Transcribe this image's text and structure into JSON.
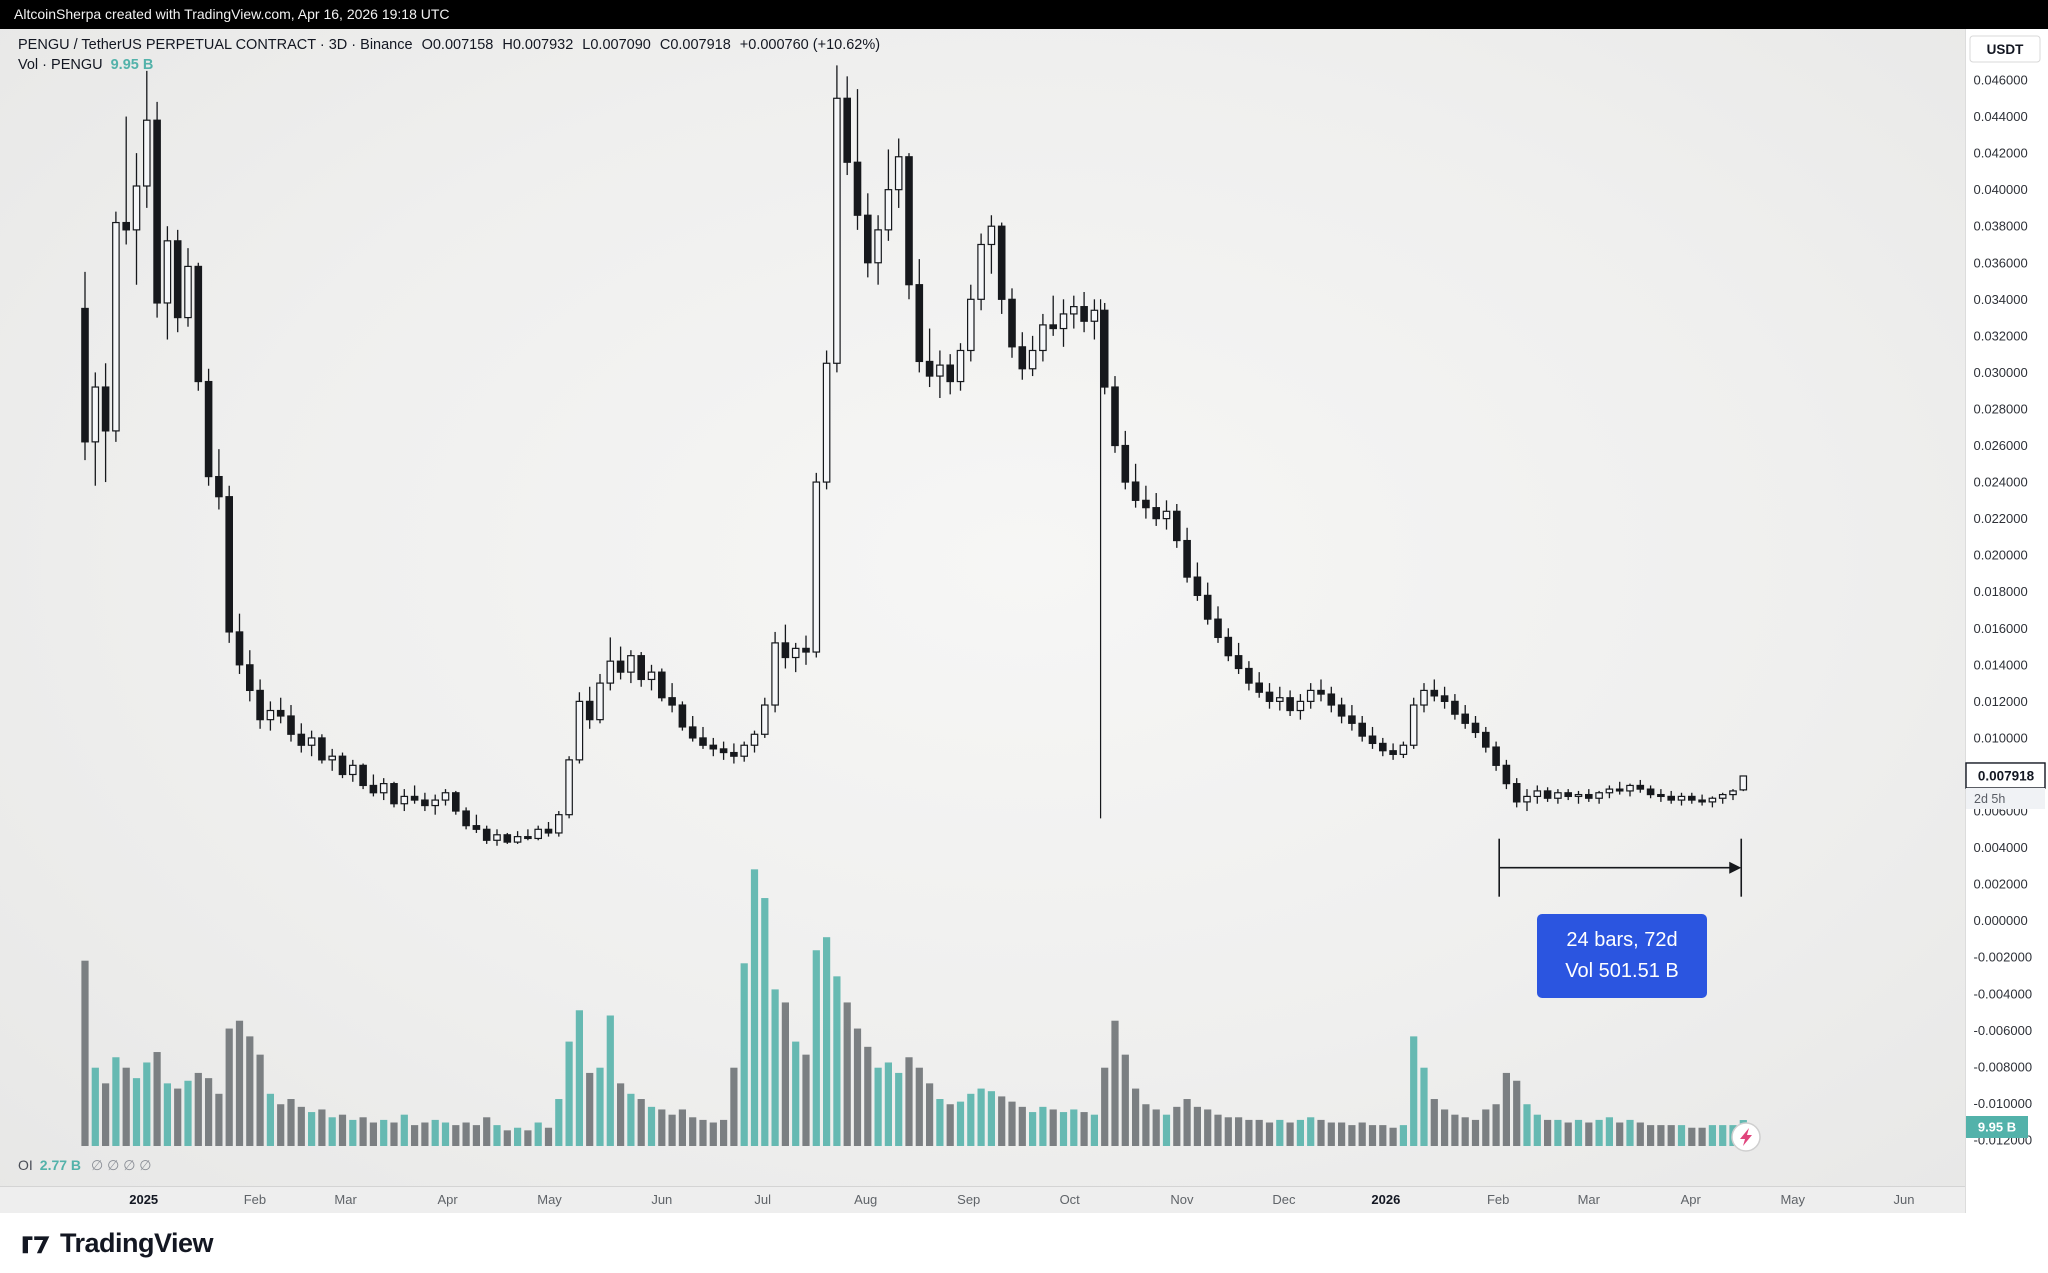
{
  "meta": {
    "attribution": "AltcoinSherpa created with TradingView.com, Apr 16, 2026 19:18 UTC"
  },
  "header": {
    "symbol_line": "PENGU / TetherUS PERPETUAL CONTRACT · 3D · Binance",
    "open": "O0.007158",
    "high": "H0.007932",
    "low": "L0.007090",
    "close": "C0.007918",
    "change": "+0.000760 (+10.62%)",
    "vol_label": "Vol · PENGU",
    "vol_value": "9.95 B"
  },
  "axis": {
    "currency": "USDT",
    "last_price": "0.007918",
    "countdown": "2d 5h",
    "vol_tag": "9.95 B"
  },
  "oi": {
    "label": "OI",
    "value": "2.77 B",
    "flags": "∅ ∅ ∅ ∅"
  },
  "annotation": {
    "line1": "24 bars, 72d",
    "line2": "Vol 501.51 B"
  },
  "footer": {
    "brand": "TradingView"
  },
  "colors": {
    "teal": "#53b2aa",
    "vol_down": "#6b6f73",
    "candle": "#16181c",
    "candle_up_fill": "#f6f7f9",
    "annotation_blue": "#2b55e0",
    "axis_text": "#2e3138",
    "date_text": "#5f6368",
    "bolt_pink": "#e0447c"
  },
  "chart_data": {
    "type": "candlestick",
    "symbol": "PENGU / TetherUS PERPETUAL CONTRACT",
    "exchange": "Binance",
    "timeframe": "3D",
    "ylim": [
      -0.012,
      0.046
    ],
    "price_step": 0.002,
    "price_decimals": 6,
    "volume_unit": "B",
    "x_labels": [
      {
        "t": "2025",
        "i": 5.7,
        "bold": true
      },
      {
        "t": "Feb",
        "i": 16.5
      },
      {
        "t": "Mar",
        "i": 25.3
      },
      {
        "t": "Apr",
        "i": 35.2
      },
      {
        "t": "May",
        "i": 45.1
      },
      {
        "t": "Jun",
        "i": 56.0
      },
      {
        "t": "Jul",
        "i": 65.8
      },
      {
        "t": "Aug",
        "i": 75.8
      },
      {
        "t": "Sep",
        "i": 85.8
      },
      {
        "t": "Oct",
        "i": 95.6
      },
      {
        "t": "Nov",
        "i": 106.5
      },
      {
        "t": "Dec",
        "i": 116.4
      },
      {
        "t": "2026",
        "i": 126.3,
        "bold": true
      },
      {
        "t": "Feb",
        "i": 137.2
      },
      {
        "t": "Mar",
        "i": 146.0
      },
      {
        "t": "Apr",
        "i": 155.9
      },
      {
        "t": "May",
        "i": 165.8
      },
      {
        "t": "Jun",
        "i": 176.6
      }
    ],
    "candles": [
      [
        0.0335,
        0.0355,
        0.0252,
        0.0262,
        71
      ],
      [
        0.0262,
        0.03,
        0.0238,
        0.0292,
        30
      ],
      [
        0.0292,
        0.0305,
        0.024,
        0.0268,
        24
      ],
      [
        0.0268,
        0.0388,
        0.0262,
        0.0382,
        34
      ],
      [
        0.0382,
        0.044,
        0.037,
        0.0378,
        30
      ],
      [
        0.0378,
        0.042,
        0.0348,
        0.0402,
        26
      ],
      [
        0.0402,
        0.0465,
        0.039,
        0.0438,
        32
      ],
      [
        0.0438,
        0.0448,
        0.033,
        0.0338,
        36
      ],
      [
        0.0338,
        0.038,
        0.0318,
        0.0372,
        24
      ],
      [
        0.0372,
        0.0378,
        0.0322,
        0.033,
        22
      ],
      [
        0.033,
        0.0368,
        0.0325,
        0.0358,
        25
      ],
      [
        0.0358,
        0.036,
        0.029,
        0.0295,
        28
      ],
      [
        0.0295,
        0.0302,
        0.0238,
        0.0243,
        26
      ],
      [
        0.0243,
        0.0258,
        0.0225,
        0.0232,
        20
      ],
      [
        0.0232,
        0.0238,
        0.0152,
        0.0158,
        45
      ],
      [
        0.0158,
        0.0168,
        0.0135,
        0.014,
        48
      ],
      [
        0.014,
        0.0148,
        0.012,
        0.0126,
        42
      ],
      [
        0.0126,
        0.0132,
        0.0105,
        0.011,
        35
      ],
      [
        0.011,
        0.012,
        0.0104,
        0.0115,
        20
      ],
      [
        0.0115,
        0.0122,
        0.0108,
        0.0112,
        16
      ],
      [
        0.0112,
        0.0118,
        0.0098,
        0.0102,
        18
      ],
      [
        0.0102,
        0.0108,
        0.0092,
        0.0096,
        15
      ],
      [
        0.0096,
        0.0104,
        0.009,
        0.01,
        13
      ],
      [
        0.01,
        0.0102,
        0.0086,
        0.0088,
        14
      ],
      [
        0.0088,
        0.0094,
        0.0082,
        0.009,
        11
      ],
      [
        0.009,
        0.0092,
        0.0078,
        0.008,
        12
      ],
      [
        0.008,
        0.0088,
        0.0076,
        0.0085,
        10
      ],
      [
        0.0085,
        0.0086,
        0.0072,
        0.0074,
        11
      ],
      [
        0.0074,
        0.008,
        0.0068,
        0.007,
        9
      ],
      [
        0.007,
        0.0078,
        0.0066,
        0.0075,
        10
      ],
      [
        0.0075,
        0.0076,
        0.0062,
        0.0064,
        9
      ],
      [
        0.0064,
        0.0072,
        0.006,
        0.0068,
        12
      ],
      [
        0.0068,
        0.0074,
        0.0064,
        0.0066,
        8
      ],
      [
        0.0066,
        0.007,
        0.006,
        0.0063,
        9
      ],
      [
        0.0063,
        0.0069,
        0.0058,
        0.0066,
        10
      ],
      [
        0.0066,
        0.0072,
        0.0063,
        0.007,
        9
      ],
      [
        0.007,
        0.0071,
        0.0058,
        0.006,
        8
      ],
      [
        0.006,
        0.0062,
        0.005,
        0.0052,
        9
      ],
      [
        0.0052,
        0.0058,
        0.0048,
        0.005,
        8
      ],
      [
        0.005,
        0.0052,
        0.0042,
        0.0044,
        11
      ],
      [
        0.0044,
        0.005,
        0.0041,
        0.0047,
        8
      ],
      [
        0.0047,
        0.0048,
        0.0042,
        0.0043,
        6
      ],
      [
        0.0043,
        0.0049,
        0.0042,
        0.0046,
        7
      ],
      [
        0.0046,
        0.005,
        0.0044,
        0.0045,
        6
      ],
      [
        0.0045,
        0.0052,
        0.0044,
        0.005,
        9
      ],
      [
        0.005,
        0.0054,
        0.0046,
        0.0048,
        7
      ],
      [
        0.0048,
        0.006,
        0.0046,
        0.0058,
        18
      ],
      [
        0.0058,
        0.009,
        0.0056,
        0.0088,
        40
      ],
      [
        0.0088,
        0.0125,
        0.0086,
        0.012,
        52
      ],
      [
        0.012,
        0.0128,
        0.0105,
        0.011,
        28
      ],
      [
        0.011,
        0.0135,
        0.0108,
        0.013,
        30
      ],
      [
        0.013,
        0.0155,
        0.0126,
        0.0142,
        50
      ],
      [
        0.0142,
        0.015,
        0.0132,
        0.0136,
        24
      ],
      [
        0.0136,
        0.0148,
        0.013,
        0.0145,
        20
      ],
      [
        0.0145,
        0.0147,
        0.0128,
        0.0132,
        18
      ],
      [
        0.0132,
        0.014,
        0.0126,
        0.0136,
        15
      ],
      [
        0.0136,
        0.0138,
        0.012,
        0.0122,
        14
      ],
      [
        0.0122,
        0.013,
        0.0114,
        0.0118,
        12
      ],
      [
        0.0118,
        0.012,
        0.0104,
        0.0106,
        14
      ],
      [
        0.0106,
        0.0112,
        0.0098,
        0.01,
        11
      ],
      [
        0.01,
        0.0106,
        0.0094,
        0.0096,
        10
      ],
      [
        0.0096,
        0.01,
        0.009,
        0.0094,
        9
      ],
      [
        0.0094,
        0.0098,
        0.0088,
        0.0092,
        10
      ],
      [
        0.0092,
        0.0097,
        0.0086,
        0.009,
        30
      ],
      [
        0.009,
        0.0098,
        0.0087,
        0.0096,
        70
      ],
      [
        0.0096,
        0.0104,
        0.0092,
        0.0102,
        106
      ],
      [
        0.0102,
        0.0122,
        0.01,
        0.0118,
        95
      ],
      [
        0.0118,
        0.0158,
        0.0114,
        0.0152,
        60
      ],
      [
        0.0152,
        0.0162,
        0.0138,
        0.0144,
        55
      ],
      [
        0.0144,
        0.0152,
        0.0136,
        0.0149,
        40
      ],
      [
        0.0149,
        0.0156,
        0.014,
        0.0147,
        35
      ],
      [
        0.0147,
        0.0245,
        0.0144,
        0.024,
        75
      ],
      [
        0.024,
        0.0312,
        0.0236,
        0.0305,
        80
      ],
      [
        0.0305,
        0.0468,
        0.03,
        0.045,
        65
      ],
      [
        0.045,
        0.0462,
        0.0408,
        0.0415,
        55
      ],
      [
        0.0415,
        0.0455,
        0.0378,
        0.0386,
        45
      ],
      [
        0.0386,
        0.0398,
        0.0352,
        0.036,
        38
      ],
      [
        0.036,
        0.0386,
        0.0348,
        0.0378,
        30
      ],
      [
        0.0378,
        0.0422,
        0.0372,
        0.04,
        32
      ],
      [
        0.04,
        0.0428,
        0.039,
        0.0418,
        28
      ],
      [
        0.0418,
        0.042,
        0.034,
        0.0348,
        34
      ],
      [
        0.0348,
        0.0362,
        0.03,
        0.0306,
        30
      ],
      [
        0.0306,
        0.0324,
        0.0292,
        0.0298,
        24
      ],
      [
        0.0298,
        0.0312,
        0.0286,
        0.0304,
        18
      ],
      [
        0.0304,
        0.031,
        0.0288,
        0.0295,
        16
      ],
      [
        0.0295,
        0.0316,
        0.029,
        0.0312,
        17
      ],
      [
        0.0312,
        0.0348,
        0.0306,
        0.034,
        20
      ],
      [
        0.034,
        0.0376,
        0.0334,
        0.037,
        22
      ],
      [
        0.037,
        0.0386,
        0.0354,
        0.038,
        21
      ],
      [
        0.038,
        0.0382,
        0.0332,
        0.034,
        19
      ],
      [
        0.034,
        0.0346,
        0.0308,
        0.0314,
        17
      ],
      [
        0.0314,
        0.0322,
        0.0296,
        0.0302,
        15
      ],
      [
        0.0302,
        0.032,
        0.0298,
        0.0312,
        13
      ],
      [
        0.0312,
        0.0332,
        0.0306,
        0.0326,
        15
      ],
      [
        0.0326,
        0.0342,
        0.032,
        0.0324,
        14
      ],
      [
        0.0324,
        0.034,
        0.0314,
        0.0332,
        13
      ],
      [
        0.0332,
        0.0342,
        0.0324,
        0.0336,
        14
      ],
      [
        0.0336,
        0.0344,
        0.0322,
        0.0328,
        13
      ],
      [
        0.0328,
        0.034,
        0.0318,
        0.0334,
        12
      ],
      [
        0.0334,
        0.0338,
        0.0288,
        0.0292,
        30
      ],
      [
        0.0292,
        0.0298,
        0.0256,
        0.026,
        48
      ],
      [
        0.026,
        0.0268,
        0.0236,
        0.024,
        35
      ],
      [
        0.024,
        0.025,
        0.0226,
        0.023,
        22
      ],
      [
        0.023,
        0.0238,
        0.022,
        0.0226,
        16
      ],
      [
        0.0226,
        0.0234,
        0.0216,
        0.022,
        14
      ],
      [
        0.022,
        0.023,
        0.0214,
        0.0224,
        12
      ],
      [
        0.0224,
        0.0228,
        0.0204,
        0.0208,
        15
      ],
      [
        0.0208,
        0.0215,
        0.0185,
        0.0188,
        18
      ],
      [
        0.0188,
        0.0196,
        0.0175,
        0.0178,
        15
      ],
      [
        0.0178,
        0.0185,
        0.0162,
        0.0165,
        14
      ],
      [
        0.0165,
        0.0172,
        0.0152,
        0.0155,
        12
      ],
      [
        0.0155,
        0.016,
        0.0142,
        0.0145,
        11
      ],
      [
        0.0145,
        0.0152,
        0.0135,
        0.0138,
        11
      ],
      [
        0.0138,
        0.0142,
        0.0126,
        0.013,
        10
      ],
      [
        0.013,
        0.0136,
        0.0122,
        0.0125,
        10
      ],
      [
        0.0125,
        0.013,
        0.0116,
        0.012,
        9
      ],
      [
        0.012,
        0.0128,
        0.0115,
        0.0122,
        10
      ],
      [
        0.0122,
        0.0126,
        0.0112,
        0.0115,
        9
      ],
      [
        0.0115,
        0.0124,
        0.011,
        0.012,
        10
      ],
      [
        0.012,
        0.013,
        0.0116,
        0.0126,
        11
      ],
      [
        0.0126,
        0.0132,
        0.012,
        0.0124,
        10
      ],
      [
        0.0124,
        0.0128,
        0.0114,
        0.0118,
        9
      ],
      [
        0.0118,
        0.0122,
        0.0108,
        0.0112,
        9
      ],
      [
        0.0112,
        0.0118,
        0.0104,
        0.0108,
        8
      ],
      [
        0.0108,
        0.0112,
        0.0098,
        0.0101,
        9
      ],
      [
        0.0101,
        0.0106,
        0.0094,
        0.0097,
        8
      ],
      [
        0.0097,
        0.01,
        0.009,
        0.0093,
        8
      ],
      [
        0.0093,
        0.0097,
        0.0088,
        0.0091,
        7
      ],
      [
        0.0091,
        0.0098,
        0.0089,
        0.0096,
        8
      ],
      [
        0.0096,
        0.0122,
        0.0094,
        0.0118,
        42
      ],
      [
        0.0118,
        0.013,
        0.0114,
        0.0126,
        30
      ],
      [
        0.0126,
        0.0132,
        0.012,
        0.0123,
        18
      ],
      [
        0.0123,
        0.0128,
        0.0116,
        0.012,
        14
      ],
      [
        0.012,
        0.0124,
        0.011,
        0.0113,
        12
      ],
      [
        0.0113,
        0.0118,
        0.0105,
        0.0108,
        11
      ],
      [
        0.0108,
        0.0112,
        0.01,
        0.0103,
        10
      ],
      [
        0.0103,
        0.0106,
        0.0092,
        0.0095,
        14
      ],
      [
        0.0095,
        0.0098,
        0.0082,
        0.0085,
        16
      ],
      [
        0.0085,
        0.0088,
        0.0072,
        0.0075,
        28
      ],
      [
        0.0075,
        0.0078,
        0.0062,
        0.0065,
        25
      ],
      [
        0.0065,
        0.0072,
        0.006,
        0.0068,
        16
      ],
      [
        0.0068,
        0.0074,
        0.0064,
        0.0071,
        12
      ],
      [
        0.0071,
        0.0073,
        0.0065,
        0.0067,
        10
      ],
      [
        0.0067,
        0.0072,
        0.0064,
        0.007,
        10
      ],
      [
        0.007,
        0.0072,
        0.0066,
        0.0068,
        9
      ],
      [
        0.0068,
        0.0071,
        0.0064,
        0.0069,
        10
      ],
      [
        0.0069,
        0.0072,
        0.0065,
        0.0067,
        9
      ],
      [
        0.0067,
        0.0071,
        0.0064,
        0.007,
        10
      ],
      [
        0.007,
        0.0074,
        0.0067,
        0.0072,
        11
      ],
      [
        0.0072,
        0.0076,
        0.0069,
        0.0071,
        9
      ],
      [
        0.0071,
        0.0075,
        0.0068,
        0.0074,
        10
      ],
      [
        0.0074,
        0.0077,
        0.007,
        0.0072,
        9
      ],
      [
        0.0072,
        0.0074,
        0.0067,
        0.0069,
        8
      ],
      [
        0.0069,
        0.0072,
        0.0065,
        0.0068,
        8
      ],
      [
        0.0068,
        0.0071,
        0.0064,
        0.0066,
        8
      ],
      [
        0.0066,
        0.007,
        0.0063,
        0.0068,
        8
      ],
      [
        0.0068,
        0.007,
        0.0064,
        0.0066,
        7
      ],
      [
        0.0066,
        0.0069,
        0.0063,
        0.0065,
        7
      ],
      [
        0.0065,
        0.0068,
        0.0062,
        0.0067,
        8
      ],
      [
        0.0067,
        0.007,
        0.0064,
        0.0069,
        8
      ],
      [
        0.0069,
        0.0072,
        0.0066,
        0.0071,
        8
      ],
      [
        0.007158,
        0.007932,
        0.00709,
        0.007918,
        9.95
      ]
    ],
    "drawings": {
      "vertical_line": {
        "index": 98.6,
        "price_from": 0.034,
        "price_to": 0.0056
      },
      "measurement": {
        "from_index": 137.3,
        "to_index": 160.8,
        "price": 0.0029,
        "label_line1": "24 bars, 72d",
        "label_line2": "Vol 501.51 B"
      }
    }
  }
}
